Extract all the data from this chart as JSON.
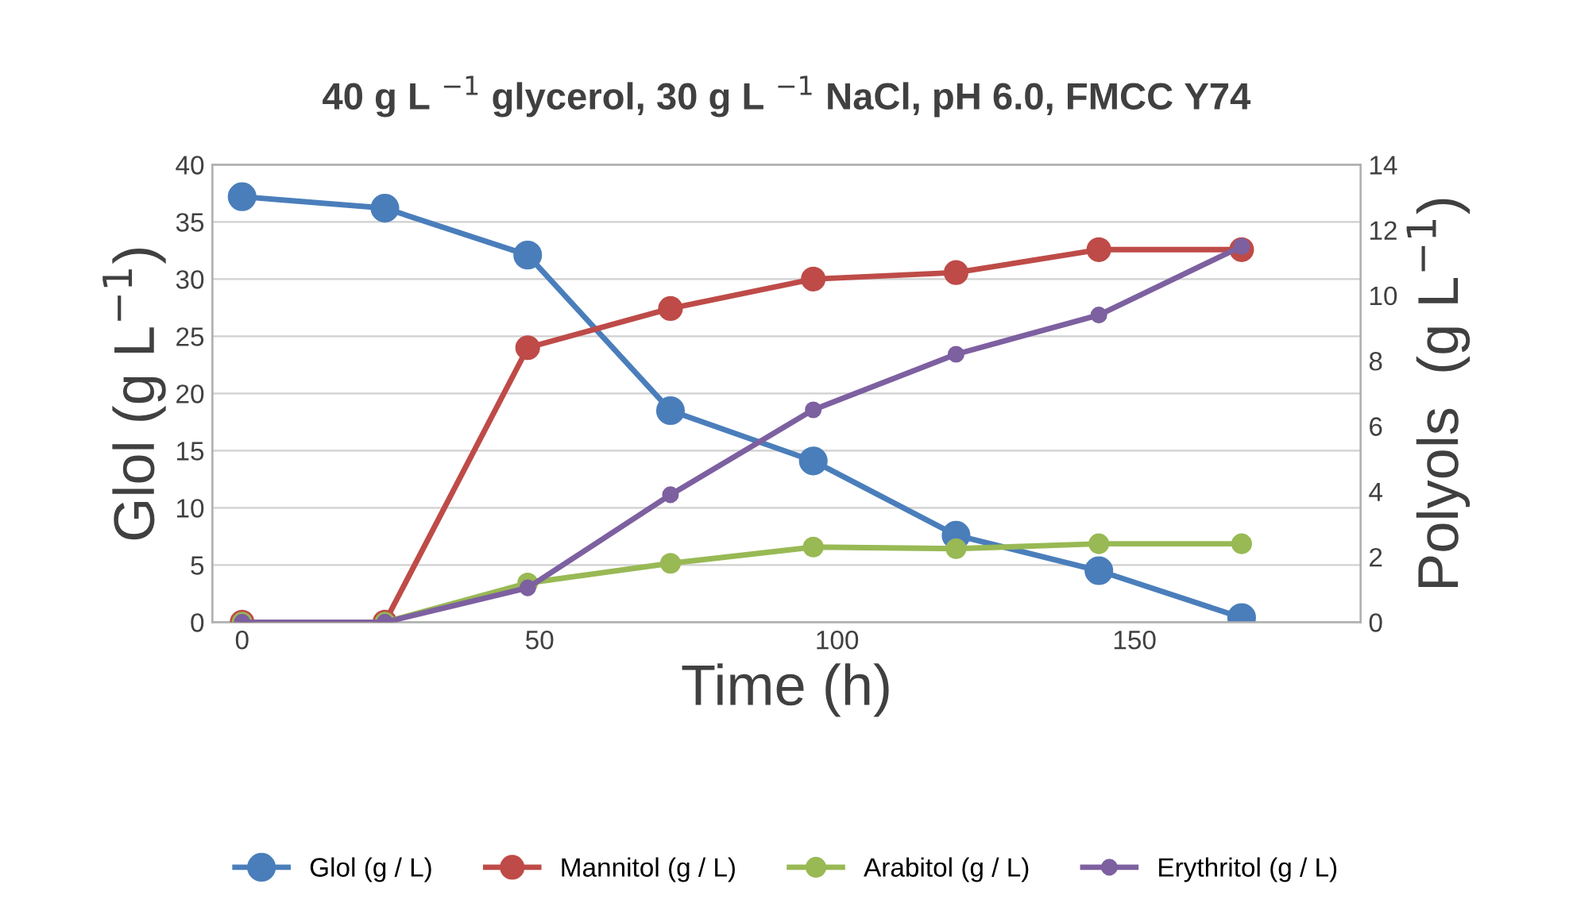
{
  "chart_data": {
    "type": "line",
    "title": "40 g L $^{−1}$ glycerol, 30 g L $^{−1}$ NaCl, pH 6.0, FMCC Y74",
    "xlabel": "Time (h)",
    "ylabel": "Glol (g L$^{−1}$)",
    "y2label": "Polyols  (g L$^{−1}$)",
    "x": [
      0,
      24,
      48,
      72,
      96,
      120,
      144,
      168
    ],
    "series": [
      {
        "name": "Glol (g / L)",
        "color": "#4a7ebb",
        "values": [
          37.2,
          36.2,
          32.1,
          18.5,
          14.1,
          7.6,
          4.5,
          0.4
        ]
      },
      {
        "name": "Mannitol (g / L)",
        "color": "#be4b48",
        "axis": "y2",
        "values": [
          0,
          0,
          8.4,
          9.6,
          10.5,
          10.7,
          11.4,
          11.4
        ]
      },
      {
        "name": "Arabitol (g / L)",
        "color": "#98b954",
        "axis": "y2",
        "values": [
          0,
          0,
          1.2,
          1.8,
          2.3,
          2.25,
          2.4,
          2.4
        ]
      },
      {
        "name": "Erythritol (g / L)",
        "color": "#7d60a0",
        "axis": "y2",
        "values": [
          0,
          0,
          1.05,
          3.9,
          6.5,
          8.2,
          9.4,
          11.5
        ]
      }
    ],
    "xlim": [
      -5,
      188
    ],
    "xticks": [
      0,
      50,
      100,
      150
    ],
    "ylim": [
      0,
      40
    ],
    "yticks": [
      0,
      5,
      10,
      15,
      20,
      25,
      30,
      35,
      40
    ],
    "y2lim": [
      0,
      14
    ],
    "y2ticks": [
      0,
      2,
      4,
      6,
      8,
      10,
      12,
      14
    ],
    "grid": "y",
    "legend": "bottom",
    "marker": "circle",
    "line_style": "solid"
  }
}
